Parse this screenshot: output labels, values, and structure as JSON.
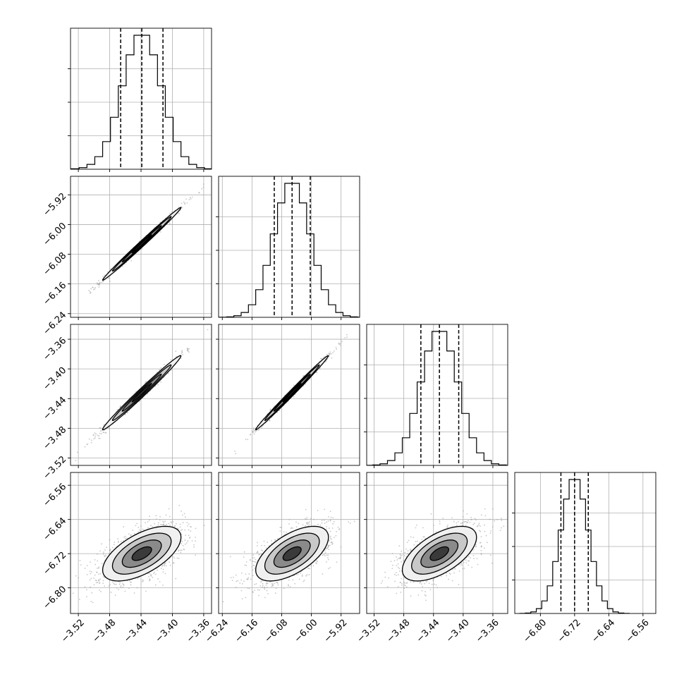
{
  "chart_data": {
    "type": "corner",
    "title": "",
    "parameters": [
      {
        "label": "",
        "range": [
          -3.53,
          -3.35
        ],
        "ticks": [
          -3.52,
          -3.48,
          -3.44,
          -3.4,
          -3.36
        ],
        "tick_labels": [
          "−3.52",
          "−3.48",
          "−3.44",
          "−3.40",
          "−3.36"
        ],
        "quantiles": [
          -3.466,
          -3.439,
          -3.412
        ],
        "mean": -3.439,
        "sigma": 0.025
      },
      {
        "label": "",
        "range": [
          -6.25,
          -5.87
        ],
        "ticks": [
          -6.24,
          -6.16,
          -6.08,
          -6.0,
          -5.92
        ],
        "tick_labels": [
          "−6.24",
          "−6.16",
          "−6.08",
          "−6.00",
          "−5.92"
        ],
        "quantiles": [
          -6.1,
          -6.052,
          -6.003
        ],
        "mean": -6.052,
        "sigma": 0.049
      },
      {
        "label": "",
        "range": [
          -3.53,
          -3.34
        ],
        "ticks": [
          -3.52,
          -3.48,
          -3.44,
          -3.4,
          -3.36
        ],
        "tick_labels": [
          "−3.52",
          "−3.48",
          "−3.44",
          "−3.40",
          "−3.36"
        ],
        "quantiles": [
          -3.457,
          -3.432,
          -3.406
        ],
        "mean": -3.432,
        "sigma": 0.025
      },
      {
        "label": "",
        "range": [
          -6.86,
          -6.53
        ],
        "ticks": [
          -6.8,
          -6.72,
          -6.64,
          -6.56
        ],
        "tick_labels": [
          "−6.80",
          "−6.72",
          "−6.64",
          "−6.56"
        ],
        "quantiles": [
          -6.752,
          -6.72,
          -6.688
        ],
        "mean": -6.72,
        "sigma": 0.032
      }
    ],
    "correlations": [
      [
        1.0,
        0.995,
        0.99,
        0.6
      ],
      [
        0.995,
        1.0,
        0.995,
        0.6
      ],
      [
        0.99,
        0.995,
        1.0,
        0.6
      ],
      [
        0.6,
        0.6,
        0.6,
        1.0
      ]
    ],
    "contour_levels_sigma": [
      0.5,
      1.0,
      1.5,
      2.0
    ],
    "histogram_bins": 20,
    "grid": true,
    "colors": {
      "line": "#000000",
      "grid": "#b0b0b0",
      "points": "#9a9a9a",
      "fill_levels": [
        "#f0f0f0",
        "#c8c8c8",
        "#8a8a8a",
        "#3a3a3a"
      ]
    }
  }
}
